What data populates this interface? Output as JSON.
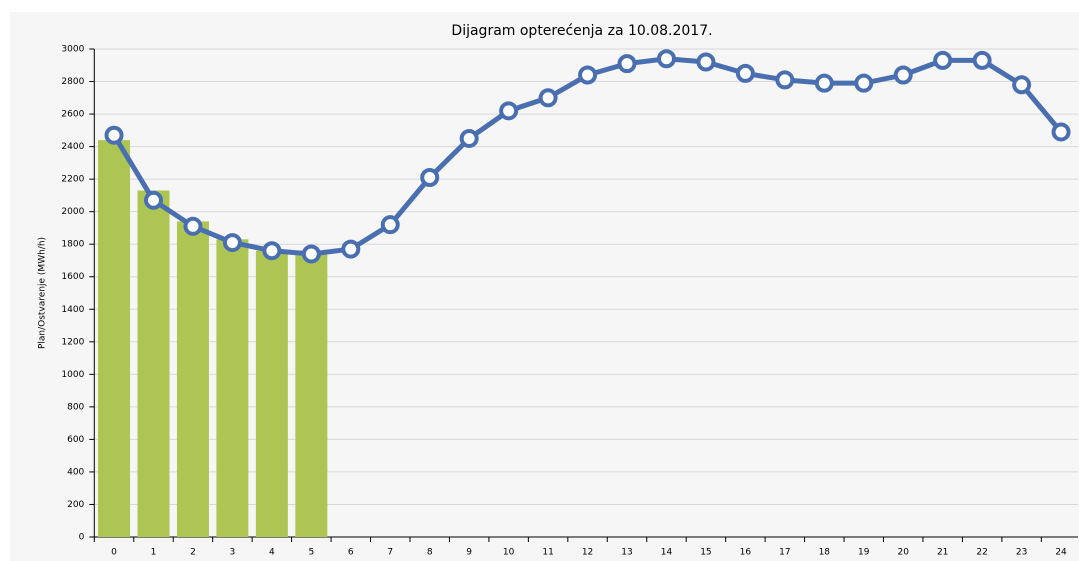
{
  "chart_data": {
    "type": "bar_line",
    "title": "Dijagram opterećenja za 10.08.2017.",
    "y_label": "Plan/Ostvarenje (MWh/h)",
    "categories": [
      "0",
      "1",
      "2",
      "3",
      "4",
      "5",
      "6",
      "7",
      "8",
      "9",
      "10",
      "11",
      "12",
      "13",
      "14",
      "15",
      "16",
      "17",
      "18",
      "19",
      "20",
      "21",
      "22",
      "23",
      "24"
    ],
    "series": [
      {
        "type": "bar",
        "color": "#adc653",
        "values": [
          2440,
          2130,
          1940,
          1830,
          1760,
          1750,
          null,
          null,
          null,
          null,
          null,
          null,
          null,
          null,
          null,
          null,
          null,
          null,
          null,
          null,
          null,
          null,
          null,
          null,
          null
        ]
      },
      {
        "type": "line",
        "color": "#4a6fb0",
        "values": [
          2470,
          2070,
          1910,
          1810,
          1760,
          1740,
          1770,
          1920,
          2210,
          2450,
          2620,
          2700,
          2840,
          2910,
          2940,
          2920,
          2850,
          2810,
          2790,
          2790,
          2840,
          2930,
          2930,
          2780,
          2490
        ]
      }
    ],
    "ylim": [
      0,
      3000
    ],
    "yticks": [
      0,
      200,
      400,
      600,
      800,
      1000,
      1200,
      1400,
      1600,
      1800,
      2000,
      2200,
      2400,
      2600,
      2800,
      3000
    ],
    "grid": true
  }
}
